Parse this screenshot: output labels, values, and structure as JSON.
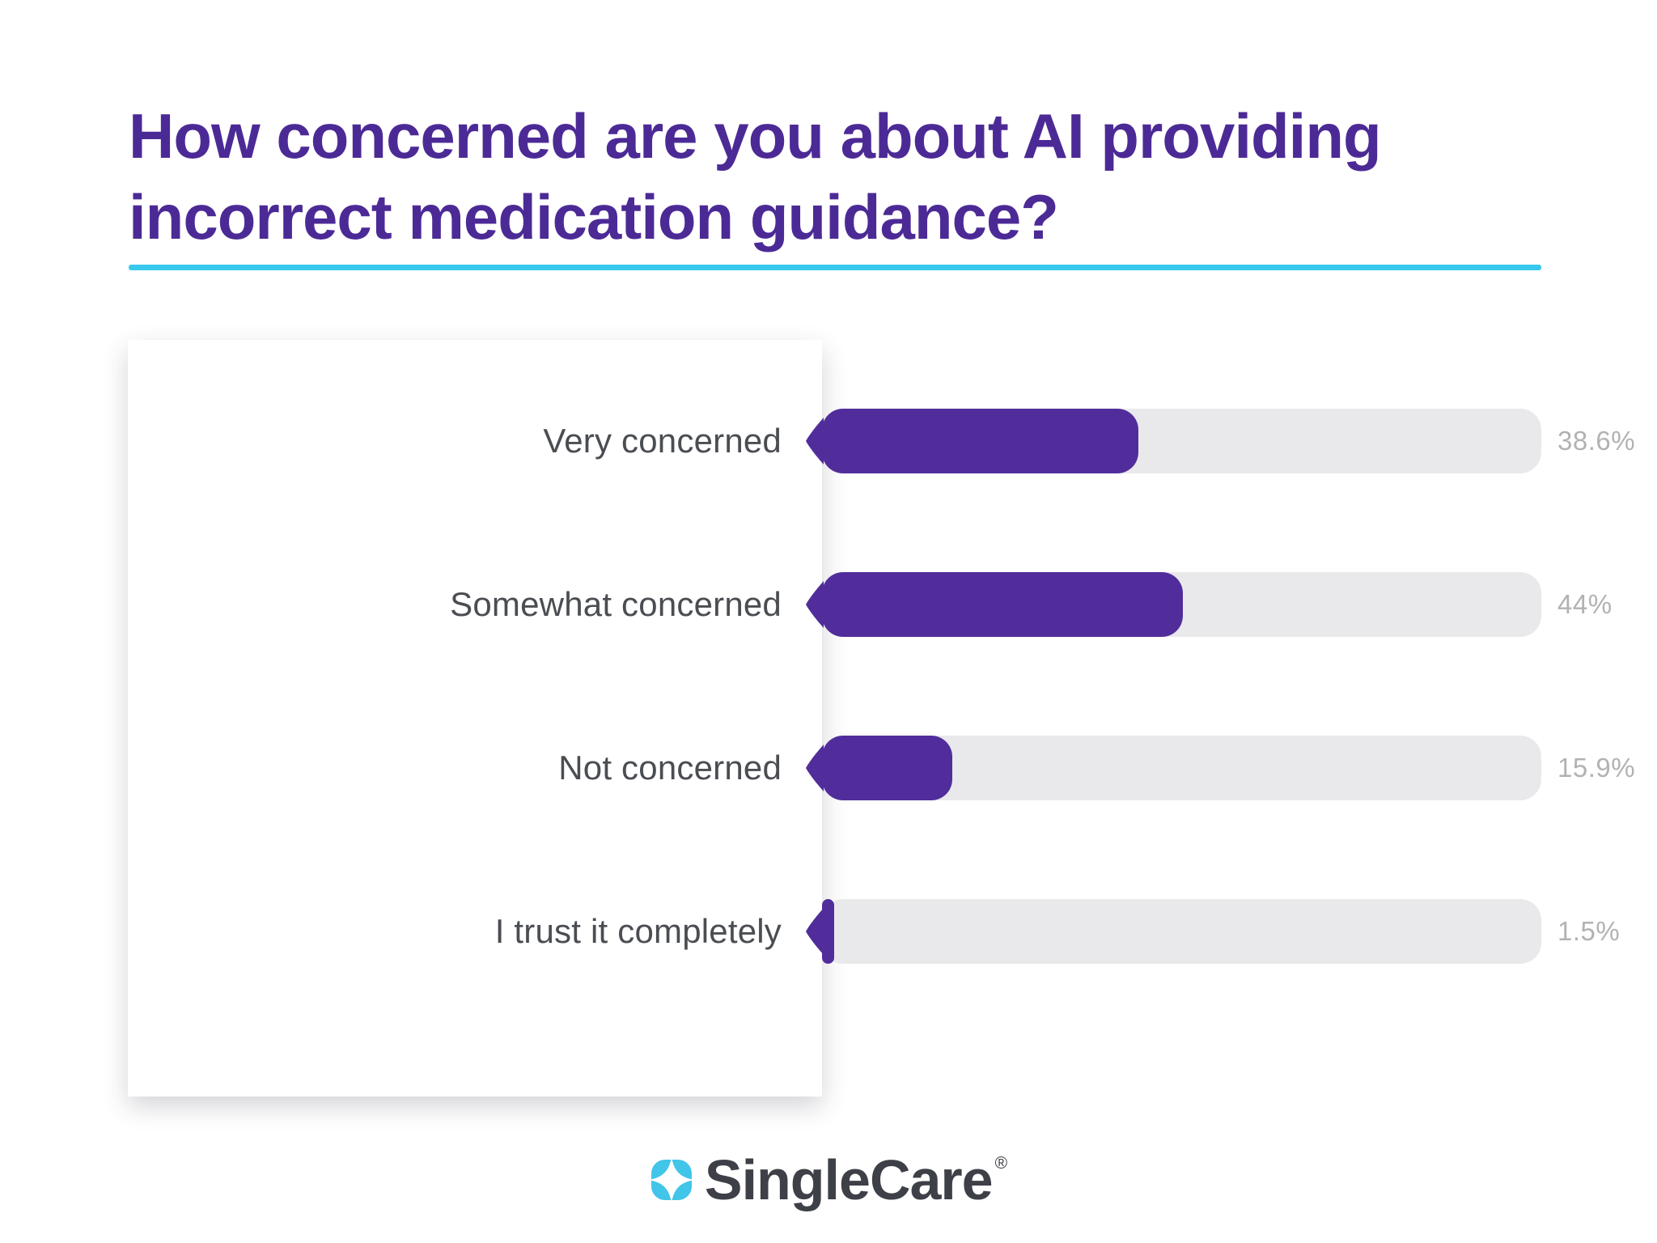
{
  "title": {
    "line1": "How concerned are you about AI providing",
    "line2": "incorrect medication guidance?"
  },
  "chart_data": {
    "type": "bar",
    "orientation": "horizontal",
    "title": "How concerned are you about AI providing incorrect medication guidance?",
    "categories": [
      "Very concerned",
      "Somewhat concerned",
      "Not concerned",
      "I trust it completely"
    ],
    "values": [
      38.6,
      44,
      15.9,
      1.5
    ],
    "value_labels": [
      "38.6%",
      "44%",
      "15.9%",
      "1.5%"
    ],
    "xlim": [
      0,
      100
    ],
    "grid": false,
    "legend": false,
    "bar_color": "#512d9c",
    "track_color": "#e9e9eb",
    "value_label_color": "#b2b2b5",
    "category_label_color": "#4a4d52"
  },
  "colors": {
    "title_purple": "#4c2a96",
    "accent_cyan": "#38c8ec",
    "logo_cyan": "#41c5e9",
    "logo_text": "#3d4047",
    "background": "#ffffff"
  },
  "footer": {
    "brand": "SingleCare",
    "registered": "®"
  }
}
